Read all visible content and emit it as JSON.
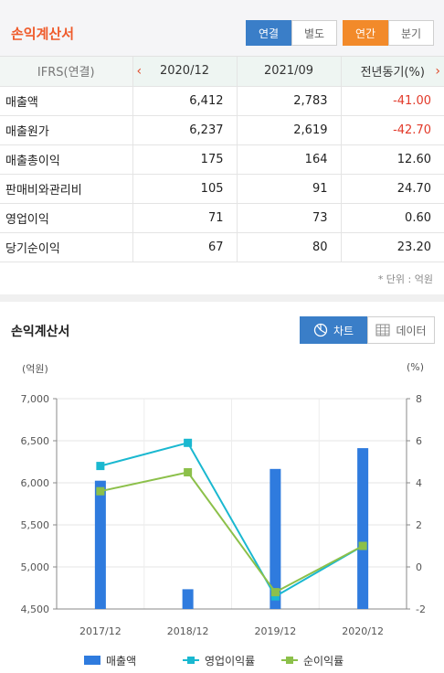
{
  "header": {
    "title": "손익계산서",
    "scope_tabs": [
      "연결",
      "별도"
    ],
    "scope_active": "연결",
    "period_tabs": [
      "연간",
      "분기"
    ],
    "period_active": "연간"
  },
  "table": {
    "corner": "IFRS(연결)",
    "columns": [
      "2020/12",
      "2021/09",
      "전년동기(%)"
    ],
    "rows": [
      {
        "label": "매출액",
        "values": [
          "6,412",
          "2,783",
          "-41.00"
        ]
      },
      {
        "label": "매출원가",
        "values": [
          "6,237",
          "2,619",
          "-42.70"
        ]
      },
      {
        "label": "매출총이익",
        "values": [
          "175",
          "164",
          "12.60"
        ]
      },
      {
        "label": "판매비와관리비",
        "values": [
          "105",
          "91",
          "24.70"
        ]
      },
      {
        "label": "영업이익",
        "values": [
          "71",
          "73",
          "0.60"
        ]
      },
      {
        "label": "당기순이익",
        "values": [
          "67",
          "80",
          "23.20"
        ]
      }
    ],
    "unit_note": "* 단위 : 억원"
  },
  "chart_section": {
    "title": "손익계산서",
    "views": [
      "차트",
      "데이터"
    ],
    "active_view": "차트"
  },
  "chart_data": {
    "type": "bar",
    "categories": [
      "2017/12",
      "2018/12",
      "2019/12",
      "2020/12"
    ],
    "series": [
      {
        "name": "매출액",
        "type": "bar",
        "axis": "left",
        "values": [
          6025,
          4735,
          6165,
          6412
        ],
        "color": "#2f7bde"
      },
      {
        "name": "영업이익률",
        "type": "line",
        "axis": "right",
        "values": [
          4.8,
          5.9,
          -1.4,
          1.0
        ],
        "color": "#1ab8d0"
      },
      {
        "name": "순이익률",
        "type": "line",
        "axis": "right",
        "values": [
          3.6,
          4.5,
          -1.2,
          1.0
        ],
        "color": "#8cc04a"
      }
    ],
    "ylabel_left": "(억원)",
    "ylabel_right": "(%)",
    "ylim_left": [
      4500,
      7000
    ],
    "ylim_right": [
      -2,
      8
    ],
    "yticks_left": [
      "7,000",
      "6,500",
      "6,000",
      "5,500",
      "5,000",
      "4,500"
    ],
    "yticks_right": [
      "8",
      "6",
      "4",
      "2",
      "0",
      "-2"
    ],
    "grid": true,
    "legend": "bottom"
  }
}
